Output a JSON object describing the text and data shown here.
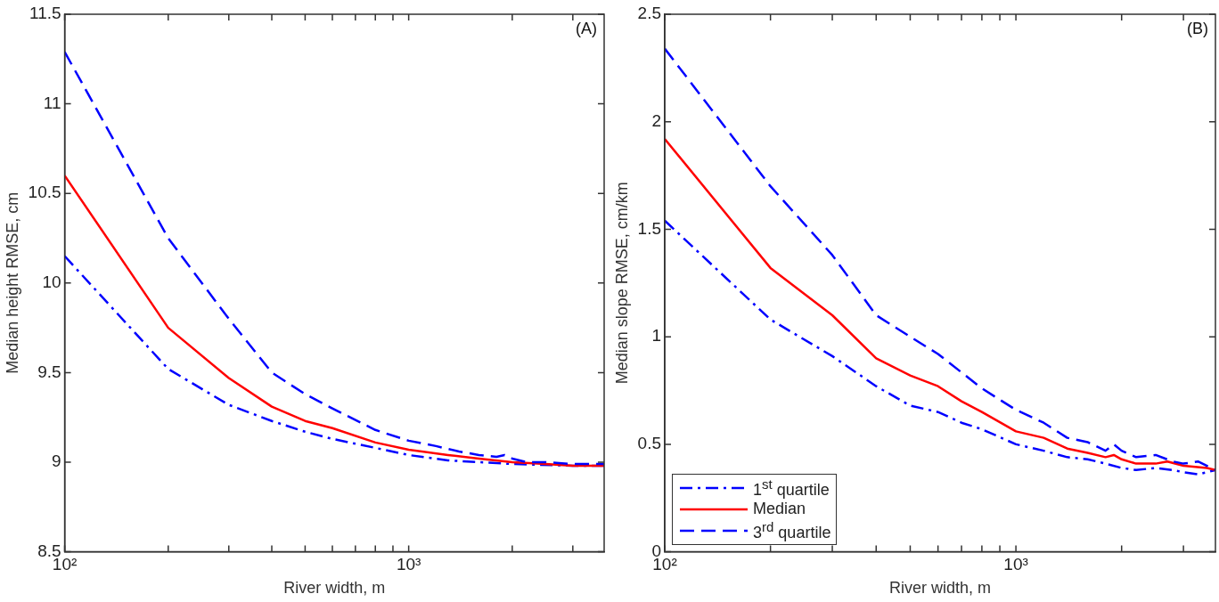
{
  "chart_data": [
    {
      "type": "line",
      "xlabel": "River width, m",
      "ylabel": "Median height RMSE, cm",
      "log": "x",
      "grid": false,
      "legend": false,
      "marker": "none",
      "annotations": [
        "(A)"
      ],
      "xlim": [
        100,
        3700
      ],
      "ylim": [
        8.5,
        11.5
      ],
      "yticks": [
        8.5,
        9,
        9.5,
        10,
        10.5,
        11,
        11.5
      ],
      "xticks": [
        {
          "value": 100,
          "label": "10²"
        },
        {
          "value": 200,
          "label": null
        },
        {
          "value": 300,
          "label": null
        },
        {
          "value": 400,
          "label": null
        },
        {
          "value": 500,
          "label": null
        },
        {
          "value": 600,
          "label": null
        },
        {
          "value": 700,
          "label": null
        },
        {
          "value": 800,
          "label": null
        },
        {
          "value": 900,
          "label": null
        },
        {
          "value": 1000,
          "label": "10³"
        },
        {
          "value": 2000,
          "label": null
        },
        {
          "value": 3000,
          "label": null
        }
      ],
      "series": [
        {
          "color": "#0000ff",
          "line_style": "dashdot",
          "x": [
            100,
            200,
            300,
            400,
            500,
            600,
            800,
            1000,
            1300,
            1600,
            2000,
            3000,
            3700
          ],
          "values": [
            10.15,
            9.52,
            9.32,
            9.23,
            9.17,
            9.13,
            9.08,
            9.04,
            9.01,
            9.0,
            8.99,
            8.98,
            8.98
          ]
        },
        {
          "color": "#ff0000",
          "line_style": "solid",
          "x": [
            100,
            200,
            300,
            400,
            500,
            600,
            800,
            1000,
            1300,
            1600,
            2000,
            2500,
            3000,
            3700
          ],
          "values": [
            10.6,
            9.75,
            9.47,
            9.31,
            9.23,
            9.19,
            9.11,
            9.07,
            9.04,
            9.02,
            9.0,
            8.99,
            8.98,
            8.98
          ]
        },
        {
          "color": "#0000ff",
          "line_style": "dashed",
          "x": [
            100,
            200,
            300,
            400,
            500,
            600,
            800,
            1000,
            1200,
            1400,
            1600,
            1800,
            1900,
            2000,
            2200,
            2500,
            3000,
            3700
          ],
          "values": [
            11.29,
            10.25,
            9.8,
            9.5,
            9.38,
            9.3,
            9.18,
            9.12,
            9.09,
            9.06,
            9.04,
            9.03,
            9.04,
            9.02,
            9.0,
            9.0,
            8.99,
            8.99
          ]
        }
      ]
    },
    {
      "type": "line",
      "xlabel": "River width, m",
      "ylabel": "Median slope RMSE, cm/km",
      "log": "x",
      "grid": false,
      "legend": "bottom left",
      "marker": "none",
      "annotations": [
        "(B)"
      ],
      "xlim": [
        100,
        3700
      ],
      "ylim": [
        0,
        2.5
      ],
      "yticks": [
        0,
        0.5,
        1,
        1.5,
        2,
        2.5
      ],
      "xticks": [
        {
          "value": 100,
          "label": "10²"
        },
        {
          "value": 200,
          "label": null
        },
        {
          "value": 300,
          "label": null
        },
        {
          "value": 400,
          "label": null
        },
        {
          "value": 500,
          "label": null
        },
        {
          "value": 600,
          "label": null
        },
        {
          "value": 700,
          "label": null
        },
        {
          "value": 800,
          "label": null
        },
        {
          "value": 900,
          "label": null
        },
        {
          "value": 1000,
          "label": "10³"
        },
        {
          "value": 2000,
          "label": null
        },
        {
          "value": 3000,
          "label": null
        }
      ],
      "series": [
        {
          "name": "1$^{st}$ quartile",
          "color": "#0000ff",
          "line_style": "dashdot",
          "x": [
            100,
            200,
            300,
            400,
            500,
            600,
            700,
            800,
            1000,
            1200,
            1400,
            1600,
            1800,
            2000,
            2200,
            2500,
            2800,
            3000,
            3300,
            3700
          ],
          "values": [
            1.54,
            1.08,
            0.91,
            0.77,
            0.68,
            0.65,
            0.6,
            0.57,
            0.5,
            0.47,
            0.44,
            0.43,
            0.41,
            0.39,
            0.38,
            0.39,
            0.38,
            0.37,
            0.36,
            0.38
          ]
        },
        {
          "name": "Median",
          "color": "#ff0000",
          "line_style": "solid",
          "x": [
            100,
            200,
            300,
            400,
            500,
            600,
            700,
            800,
            1000,
            1200,
            1400,
            1600,
            1800,
            1900,
            2000,
            2200,
            2500,
            2700,
            3000,
            3500,
            3700
          ],
          "values": [
            1.92,
            1.32,
            1.1,
            0.9,
            0.82,
            0.77,
            0.7,
            0.65,
            0.56,
            0.53,
            0.48,
            0.46,
            0.44,
            0.45,
            0.43,
            0.41,
            0.41,
            0.42,
            0.4,
            0.39,
            0.38
          ]
        },
        {
          "name": "3$^{rd}$ quartile",
          "color": "#0000ff",
          "line_style": "dashed",
          "x": [
            100,
            200,
            300,
            400,
            500,
            600,
            800,
            1000,
            1200,
            1400,
            1600,
            1800,
            1900,
            2000,
            2200,
            2500,
            2800,
            3000,
            3300,
            3700
          ],
          "values": [
            2.34,
            1.7,
            1.38,
            1.1,
            1.0,
            0.92,
            0.76,
            0.66,
            0.6,
            0.53,
            0.51,
            0.47,
            0.5,
            0.47,
            0.44,
            0.45,
            0.42,
            0.41,
            0.42,
            0.38
          ]
        }
      ]
    }
  ]
}
